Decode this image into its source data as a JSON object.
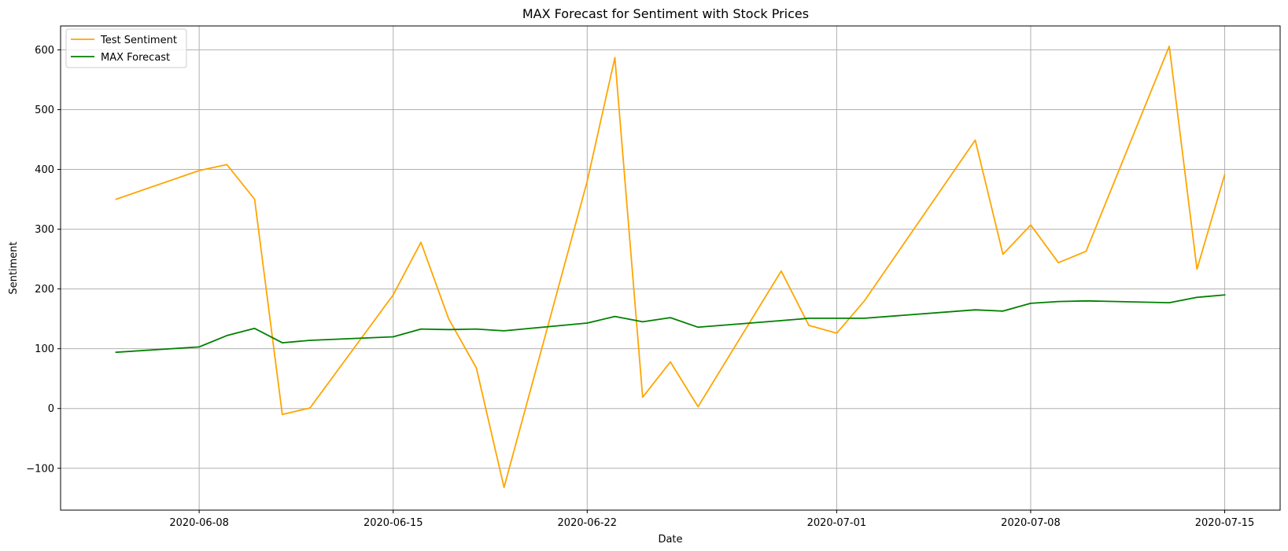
{
  "chart_data": {
    "type": "line",
    "title": "MAX Forecast for Sentiment with Stock Prices",
    "xlabel": "Date",
    "ylabel": "Sentiment",
    "x_type": "date",
    "xlim": [
      "2020-06-03",
      "2020-07-17"
    ],
    "ylim": [
      -170,
      640
    ],
    "x_ticks": [
      "2020-06-08",
      "2020-06-15",
      "2020-06-22",
      "2020-07-01",
      "2020-07-08",
      "2020-07-15"
    ],
    "y_ticks": [
      -100,
      0,
      100,
      200,
      300,
      400,
      500,
      600
    ],
    "y_tick_labels": [
      "−100",
      "0",
      "100",
      "200",
      "300",
      "400",
      "500",
      "600"
    ],
    "grid": true,
    "legend_position": "top-left",
    "series": [
      {
        "name": "Test Sentiment",
        "color": "#ffa500",
        "points": [
          [
            "2020-06-05",
            350
          ],
          [
            "2020-06-08",
            398
          ],
          [
            "2020-06-09",
            408
          ],
          [
            "2020-06-10",
            350
          ],
          [
            "2020-06-11",
            -10
          ],
          [
            "2020-06-12",
            1
          ],
          [
            "2020-06-15",
            190
          ],
          [
            "2020-06-16",
            278
          ],
          [
            "2020-06-17",
            150
          ],
          [
            "2020-06-18",
            68
          ],
          [
            "2020-06-19",
            -132
          ],
          [
            "2020-06-22",
            380
          ],
          [
            "2020-06-23",
            587
          ],
          [
            "2020-06-24",
            19
          ],
          [
            "2020-06-25",
            78
          ],
          [
            "2020-06-26",
            3
          ],
          [
            "2020-06-29",
            230
          ],
          [
            "2020-06-30",
            139
          ],
          [
            "2020-07-01",
            126
          ],
          [
            "2020-07-02",
            180
          ],
          [
            "2020-07-06",
            449
          ],
          [
            "2020-07-07",
            258
          ],
          [
            "2020-07-08",
            307
          ],
          [
            "2020-07-09",
            244
          ],
          [
            "2020-07-10",
            263
          ],
          [
            "2020-07-13",
            606
          ],
          [
            "2020-07-14",
            233
          ],
          [
            "2020-07-15",
            391
          ]
        ]
      },
      {
        "name": "MAX Forecast",
        "color": "#008000",
        "points": [
          [
            "2020-06-05",
            94
          ],
          [
            "2020-06-08",
            103
          ],
          [
            "2020-06-09",
            122
          ],
          [
            "2020-06-10",
            134
          ],
          [
            "2020-06-11",
            110
          ],
          [
            "2020-06-12",
            114
          ],
          [
            "2020-06-15",
            120
          ],
          [
            "2020-06-16",
            133
          ],
          [
            "2020-06-17",
            132
          ],
          [
            "2020-06-18",
            133
          ],
          [
            "2020-06-19",
            130
          ],
          [
            "2020-06-22",
            143
          ],
          [
            "2020-06-23",
            154
          ],
          [
            "2020-06-24",
            145
          ],
          [
            "2020-06-25",
            152
          ],
          [
            "2020-06-26",
            136
          ],
          [
            "2020-06-29",
            147
          ],
          [
            "2020-06-30",
            151
          ],
          [
            "2020-07-01",
            151
          ],
          [
            "2020-07-02",
            151
          ],
          [
            "2020-07-06",
            165
          ],
          [
            "2020-07-07",
            163
          ],
          [
            "2020-07-08",
            176
          ],
          [
            "2020-07-09",
            179
          ],
          [
            "2020-07-10",
            180
          ],
          [
            "2020-07-13",
            177
          ],
          [
            "2020-07-14",
            186
          ],
          [
            "2020-07-15",
            190
          ]
        ]
      }
    ]
  }
}
